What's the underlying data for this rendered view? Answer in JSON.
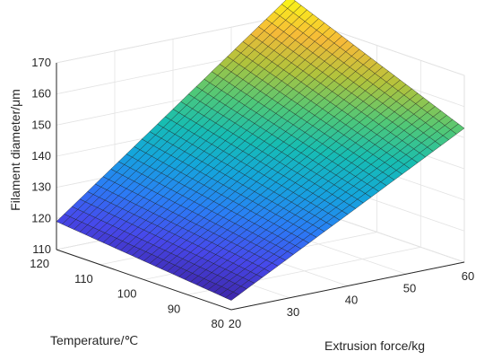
{
  "chart_data": {
    "type": "surface3d",
    "colormap": "parula",
    "grid": true,
    "axes": {
      "x": {
        "label": "Extrusion force/kg",
        "range": [
          20,
          60
        ],
        "ticks": [
          "20",
          "30",
          "40",
          "50",
          "60"
        ]
      },
      "y": {
        "label": "Temperature/℃",
        "range": [
          80,
          120
        ],
        "ticks": [
          "80",
          "90",
          "100",
          "110",
          "120"
        ]
      },
      "z": {
        "label": "Filament diameter/μm",
        "range": [
          110,
          170
        ],
        "ticks": [
          "110",
          "120",
          "130",
          "140",
          "150",
          "160",
          "170"
        ]
      }
    },
    "corner_values": [
      {
        "extrusion_force": 20,
        "temperature": 120,
        "diameter": 119
      },
      {
        "extrusion_force": 60,
        "temperature": 120,
        "diameter": 176
      },
      {
        "extrusion_force": 20,
        "temperature": 80,
        "diameter": 113
      },
      {
        "extrusion_force": 60,
        "temperature": 80,
        "diameter": 153
      }
    ],
    "mesh_resolution": 30
  }
}
